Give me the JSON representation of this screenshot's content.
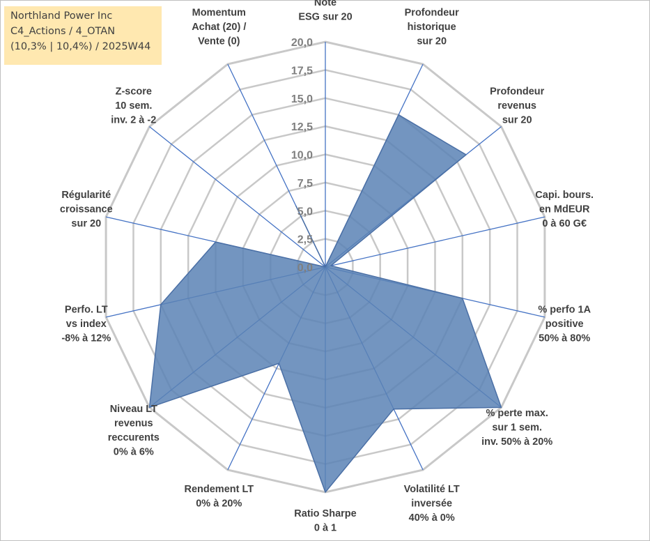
{
  "info_box": {
    "line1": "Northland Power Inc",
    "line2": "C4_Actions / 4_OTAN",
    "line3": "(10,3% | 10,4%) / 2025W44"
  },
  "colors": {
    "grid": "#c8c8c8",
    "spoke": "#4472c4",
    "fill": "#5a82b5",
    "fill_stroke": "#4a6fa5",
    "box": "#ffe8b0"
  },
  "chart_data": {
    "type": "radar",
    "title": "",
    "r_min": 0,
    "r_max": 20,
    "ticks": [
      "0,0",
      "2,5",
      "5,0",
      "7,5",
      "10,0",
      "12,5",
      "15,0",
      "17,5",
      "20,0"
    ],
    "axes": [
      {
        "label": [
          "Note",
          "ESG sur 20"
        ],
        "value": 0
      },
      {
        "label": [
          "Profondeur",
          "historique",
          "sur 20"
        ],
        "value": 15
      },
      {
        "label": [
          "Profondeur",
          "revenus",
          "sur 20"
        ],
        "value": 16
      },
      {
        "label": [
          "Capi. bours.",
          "en MdEUR",
          "0 à 60 G€"
        ],
        "value": 0.5
      },
      {
        "label": [
          "% perfo 1A",
          "positive",
          "50% à 80%"
        ],
        "value": 12.5
      },
      {
        "label": [
          "% perte max.",
          "sur 1 sem.",
          "inv. 50% à 20%"
        ],
        "value": 20
      },
      {
        "label": [
          "Volatilité LT",
          "inversée",
          "40% à 0%"
        ],
        "value": 14
      },
      {
        "label": [
          "Ratio Sharpe",
          "0 à 1"
        ],
        "value": 20
      },
      {
        "label": [
          "Rendement LT",
          "0% à 20%"
        ],
        "value": 9.5
      },
      {
        "label": [
          "Niveau LT",
          "revenus",
          "reccurents",
          "0% à 6%"
        ],
        "value": 20
      },
      {
        "label": [
          "Perfo. LT",
          "vs index",
          "-8% à 12%"
        ],
        "value": 15
      },
      {
        "label": [
          "Régularité",
          "croissance",
          "sur 20"
        ],
        "value": 10
      },
      {
        "label": [
          "Z-score",
          "10 sem.",
          "inv. 2 à -2"
        ],
        "value": 0
      },
      {
        "label": [
          "Momentum",
          "Achat (20) /",
          "Vente (0)"
        ],
        "value": 6
      }
    ]
  }
}
